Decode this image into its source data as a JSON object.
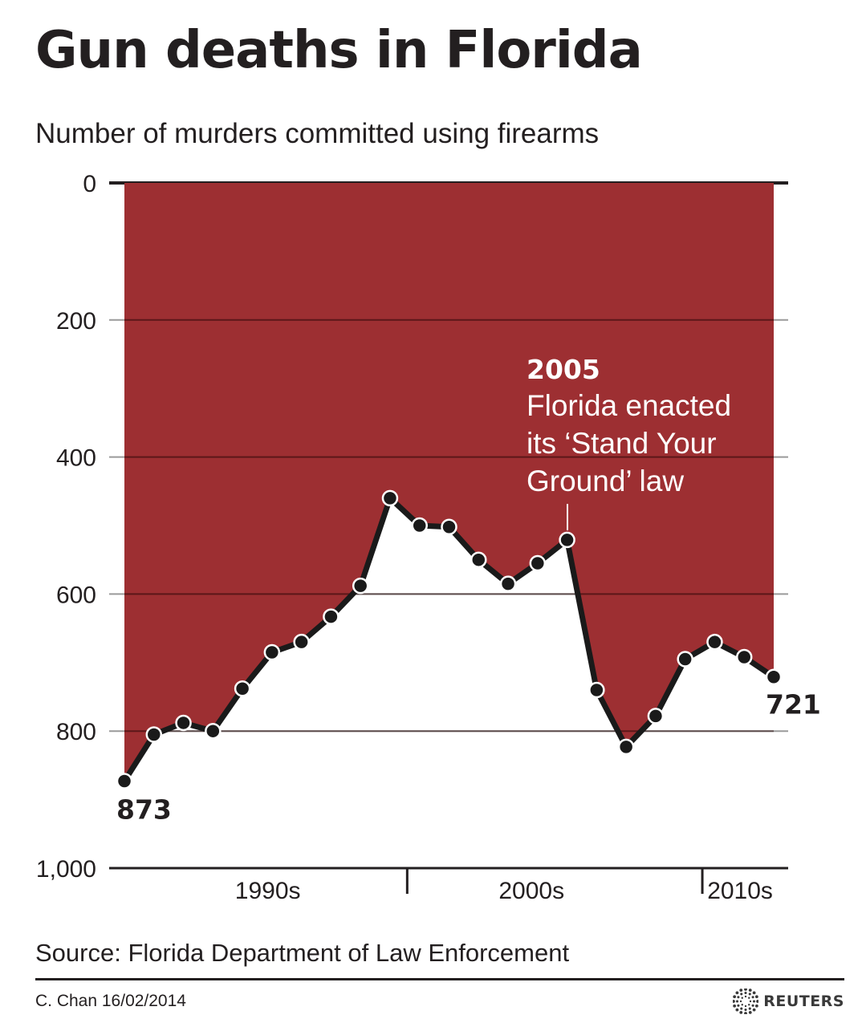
{
  "title": "Gun deaths in Florida",
  "subtitle": "Number of murders committed using firearms",
  "source": "Source: Florida Department of Law Enforcement",
  "credit": "C. Chan 16/02/2014",
  "logo_text": "REUTERS",
  "colors": {
    "fill": "#9d2f32",
    "line": "#1a1a1a",
    "marker": "#1a1a1a",
    "text": "#231f20",
    "grid": "#555555"
  },
  "chart_data": {
    "type": "area",
    "title": "Gun deaths in Florida",
    "subtitle": "Number of murders committed using firearms",
    "y_axis": {
      "range": [
        0,
        1000
      ],
      "inverted": true,
      "ticks": [
        "0",
        "200",
        "400",
        "600",
        "800",
        "1,000"
      ]
    },
    "x_axis": {
      "decade_labels": [
        "1990s",
        "2000s",
        "2010s"
      ]
    },
    "grid": true,
    "x": [
      1990,
      1991,
      1992,
      1993,
      1994,
      1995,
      1996,
      1997,
      1998,
      1999,
      2000,
      2001,
      2002,
      2003,
      2004,
      2005,
      2006,
      2007,
      2008,
      2009,
      2010,
      2011,
      2012
    ],
    "series": [
      {
        "values": [
          873,
          805,
          788,
          800,
          738,
          685,
          670,
          633,
          588,
          460,
          500,
          502,
          550,
          585,
          555,
          521,
          740,
          823,
          778,
          695,
          670,
          692,
          721
        ]
      }
    ],
    "annotations": [
      {
        "year": "2005",
        "text_lines": [
          "Florida enacted",
          "its ‘Stand Your",
          "Ground’ law"
        ]
      }
    ],
    "data_labels": [
      {
        "text": "873",
        "for": "first"
      },
      {
        "text": "721",
        "for": "last"
      }
    ]
  }
}
